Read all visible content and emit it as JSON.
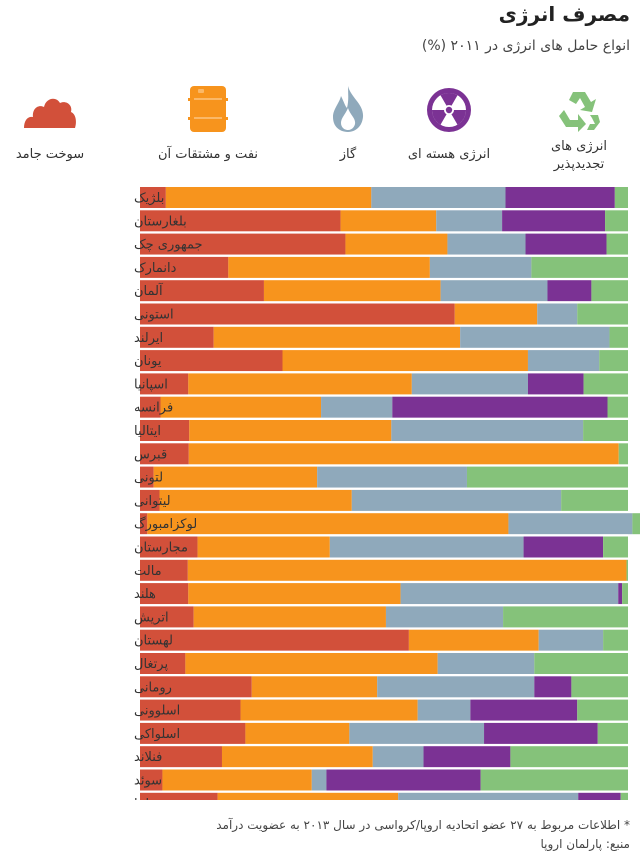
{
  "header": {
    "title": "مصرف انرژی",
    "subtitle": "انواع حامل های انرژی در ۲۰۱۱ (%)"
  },
  "colors": {
    "solid": "#d2503a",
    "oil": "#f7941d",
    "gas": "#8fa9bb",
    "nuclear": "#7b3294",
    "renewable": "#85c27a",
    "grid": "#dddddd"
  },
  "legend": [
    {
      "key": "renewable",
      "icon": "recycle-icon",
      "label1": "انرژی های",
      "label2": "تجدیدپذیر"
    },
    {
      "key": "nuclear",
      "icon": "radiation-icon",
      "label1": "انرژی هسته ای",
      "label2": ""
    },
    {
      "key": "gas",
      "icon": "flame-icon",
      "label1": "گاز",
      "label2": ""
    },
    {
      "key": "oil",
      "icon": "oil-barrel-icon",
      "label1": "نفت و مشتقات آن",
      "label2": ""
    },
    {
      "key": "solid",
      "icon": "coal-pile-icon",
      "label1": "سوخت جامد",
      "label2": ""
    }
  ],
  "chart_data": {
    "type": "bar",
    "orientation": "horizontal",
    "stacked": true,
    "title": "مصرف انرژی",
    "subtitle": "انواع حامل های انرژی در ۲۰۱۱ (%)",
    "xlim": [
      0,
      100
    ],
    "x_tick_labels": [
      "۰",
      "۱۰",
      "۲۰",
      "۳۰",
      "۴۰",
      "۵۰",
      "۶۰",
      "۷۰",
      "۸۰",
      "۹۰",
      "۱۰۰"
    ],
    "categories": [
      "بلژیک",
      "بلغارستان",
      "جمهوری چک",
      "دانمارک",
      "آلمان",
      "استونی",
      "ایرلند",
      "یونان",
      "اسپانیا",
      "فرانسه",
      "ایتالیا",
      "قبرس",
      "لتونی",
      "لیتوانی",
      "لوکزامبورگ",
      "مجارستان",
      "مالت",
      "هلند",
      "اتریش",
      "لهستان",
      "پرتغال",
      "رومانی",
      "اسلوونی",
      "اسلواکی",
      "فنلاند",
      "سوئد",
      "بریتانیا"
    ],
    "series": [
      {
        "key": "solid",
        "name": "سوخت جامد",
        "values": [
          5.3,
          41.1,
          42.1,
          18.1,
          25.4,
          64.5,
          15.1,
          29.2,
          9.9,
          4.2,
          10.1,
          10.0,
          2.8,
          4.0,
          1.5,
          11.8,
          9.8,
          9.9,
          11.0,
          55.1,
          9.3,
          22.9,
          20.6,
          21.6,
          16.8,
          4.6,
          15.9
        ]
      },
      {
        "key": "oil",
        "name": "نفت و مشتقات آن",
        "values": [
          42.1,
          19.6,
          20.9,
          41.3,
          36.2,
          16.9,
          50.5,
          50.3,
          45.8,
          32.9,
          41.4,
          88.1,
          33.5,
          39.4,
          74.0,
          27.1,
          89.9,
          43.5,
          39.4,
          26.6,
          51.7,
          25.7,
          36.3,
          21.3,
          30.9,
          30.6,
          37.0
        ]
      },
      {
        "key": "gas",
        "name": "گاز",
        "values": [
          27.5,
          13.5,
          16.0,
          20.8,
          21.9,
          8.2,
          30.6,
          14.6,
          23.8,
          14.6,
          39.3,
          0.0,
          30.7,
          42.9,
          25.4,
          39.7,
          0.0,
          44.6,
          24.0,
          13.2,
          19.8,
          32.2,
          10.8,
          27.6,
          10.4,
          3.0,
          36.9
        ]
      },
      {
        "key": "nuclear",
        "name": "انرژی هسته ای",
        "values": [
          22.4,
          21.1,
          16.6,
          0.0,
          9.0,
          0.0,
          0.0,
          0.0,
          11.4,
          44.1,
          0.0,
          0.0,
          0.0,
          0.0,
          0.0,
          16.3,
          0.0,
          0.8,
          0.0,
          0.0,
          0.0,
          7.6,
          21.9,
          23.3,
          17.8,
          31.6,
          8.7
        ]
      },
      {
        "key": "renewable",
        "name": "انرژی های تجدیدپذیر",
        "values": [
          2.7,
          4.7,
          4.4,
          19.8,
          7.5,
          10.4,
          3.8,
          5.9,
          9.1,
          4.2,
          9.2,
          1.9,
          33.0,
          13.7,
          3.1,
          5.1,
          0.3,
          1.2,
          25.6,
          5.1,
          19.2,
          11.6,
          10.4,
          6.2,
          24.1,
          30.2,
          1.5
        ]
      }
    ],
    "grid": true
  },
  "footnote": {
    "line1": "* اطلاعات مربوط به ۲۷ عضو اتحادیه اروپا/کرواسی در سال ۲۰۱۳ به عضویت درآمد",
    "line2": "منبع: پارلمان اروپا"
  }
}
